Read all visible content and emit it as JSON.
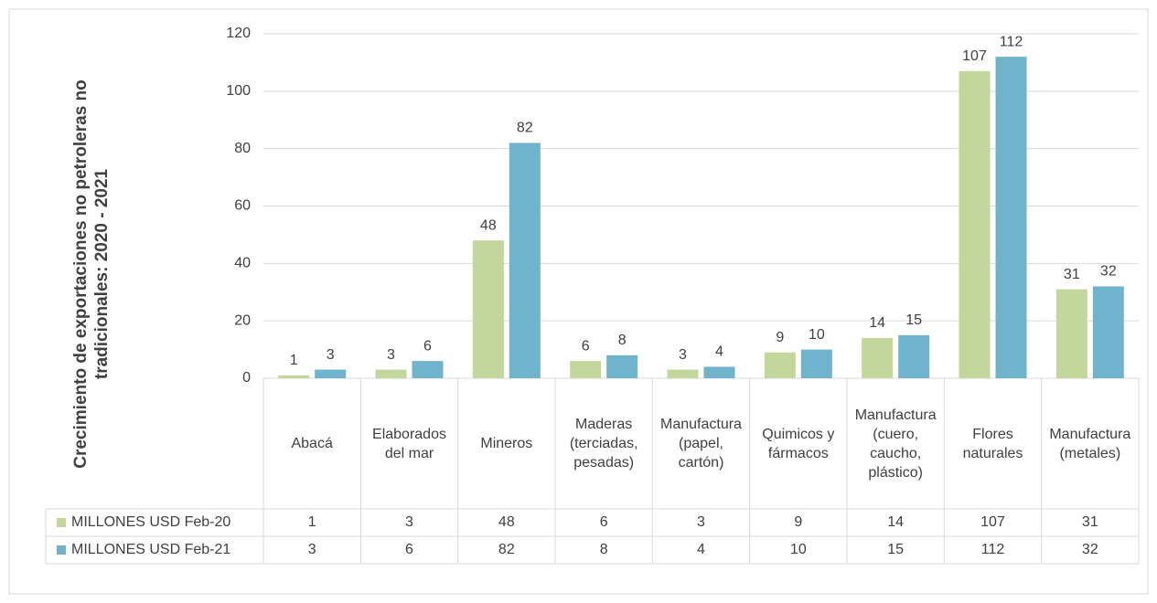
{
  "chart_data": {
    "type": "bar",
    "y_label": "Crecimiento de exportaciones no petroleras no tradicionales: 2020 - 2021",
    "categories": [
      "Abacá",
      "Elaborados del mar",
      "Mineros",
      "Maderas (terciadas, pesadas)",
      "Manufactura (papel, cartón)",
      "Quimicos y fármacos",
      "Manufactura (cuero, caucho, plástico)",
      "Flores naturales",
      "Manufactura (metales)"
    ],
    "series": [
      {
        "name": "MILLONES USD Feb-20",
        "color": "#c3d69b",
        "values": [
          1,
          3,
          48,
          6,
          3,
          9,
          14,
          107,
          31
        ]
      },
      {
        "name": "MILLONES USD Feb-21",
        "color": "#6fb3cc",
        "values": [
          3,
          6,
          82,
          8,
          4,
          10,
          15,
          112,
          32
        ]
      }
    ],
    "ylim": [
      0,
      120
    ],
    "yticks": [
      0,
      20,
      40,
      60,
      80,
      100,
      120
    ],
    "grid": true,
    "data_table": true
  }
}
